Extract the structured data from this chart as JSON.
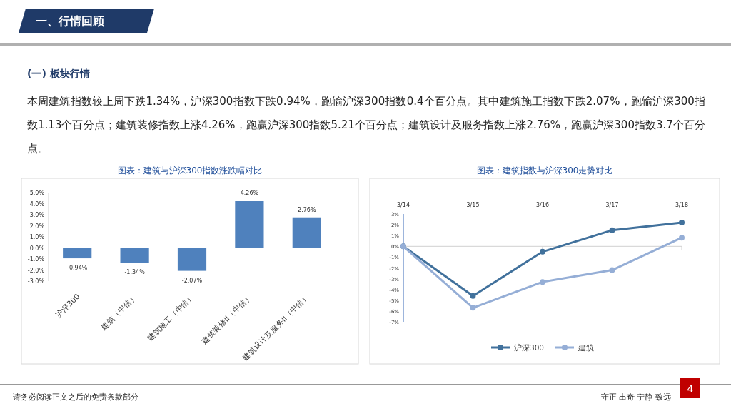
{
  "chart_data": [
    {
      "type": "other",
      "title": "一、行情回顾",
      "subtitle": "(一) 板块行情",
      "annotations": [
        "本周建筑指数较上周下跌1.34%，沪深300指数下跌0.94%，跑输沪深300指数0.4个百分点。其中建筑施工指数下跌2.07%，跑输沪深300指数1.13个百分点；建筑装修指数上涨4.26%，跑赢沪深300指数5.21个百分点；建筑设计及服务指数上涨2.76%，跑赢沪深300指数3.7个百分点。",
        "请务必阅读正文之后的免责条款部分",
        "守正 出奇 宁静 致远",
        "4"
      ]
    },
    {
      "type": "bar",
      "title": "图表：建筑与沪深300指数涨跌幅对比",
      "categories": [
        "沪深300",
        "建筑（中信）",
        "建筑施工（中信）",
        "建筑装修II（中信）",
        "建筑设计及服务II（中信）"
      ],
      "values": [
        -0.94,
        -1.34,
        -2.07,
        4.26,
        2.76
      ],
      "color": "#4f81bd",
      "value_labels": [
        "-0.94%",
        "-1.34%",
        "-2.07%",
        "4.26%",
        "2.76%"
      ],
      "ylim": [
        -3,
        5
      ],
      "yticks": [
        {
          "value": -3,
          "label": "-3.0%"
        },
        {
          "value": -2,
          "label": "-2.0%"
        },
        {
          "value": -1,
          "label": "-1.0%"
        },
        {
          "value": 0,
          "label": "0.0%"
        },
        {
          "value": 1,
          "label": "1.0%"
        },
        {
          "value": 2,
          "label": "2.0%"
        },
        {
          "value": 3,
          "label": "3.0%"
        },
        {
          "value": 4,
          "label": "4.0%"
        },
        {
          "value": 5,
          "label": "5.0%"
        }
      ]
    },
    {
      "type": "line",
      "title": "图表：建筑指数与沪深300走势对比",
      "categories": [
        "3/14",
        "3/15",
        "3/16",
        "3/17",
        "3/18"
      ],
      "series": [
        {
          "name": "沪深300",
          "color": "#41719c",
          "values": [
            0,
            -4.6,
            -0.5,
            1.5,
            2.2
          ]
        },
        {
          "name": "建筑",
          "color": "#95aed6",
          "values": [
            0,
            -5.7,
            -3.3,
            -2.2,
            0.8
          ]
        }
      ],
      "ylim": [
        -7,
        3
      ],
      "yticks": [
        {
          "value": -7,
          "label": "-7%"
        },
        {
          "value": -6,
          "label": "-6%"
        },
        {
          "value": -5,
          "label": "-5%"
        },
        {
          "value": -4,
          "label": "-4%"
        },
        {
          "value": -3,
          "label": "-3%"
        },
        {
          "value": -2,
          "label": "-2%"
        },
        {
          "value": -1,
          "label": "-1%"
        },
        {
          "value": 0,
          "label": "0%"
        },
        {
          "value": 1,
          "label": "1%"
        },
        {
          "value": 2,
          "label": "2%"
        },
        {
          "value": 3,
          "label": "3%"
        }
      ],
      "marker": "circle",
      "legend": "bottom"
    }
  ]
}
